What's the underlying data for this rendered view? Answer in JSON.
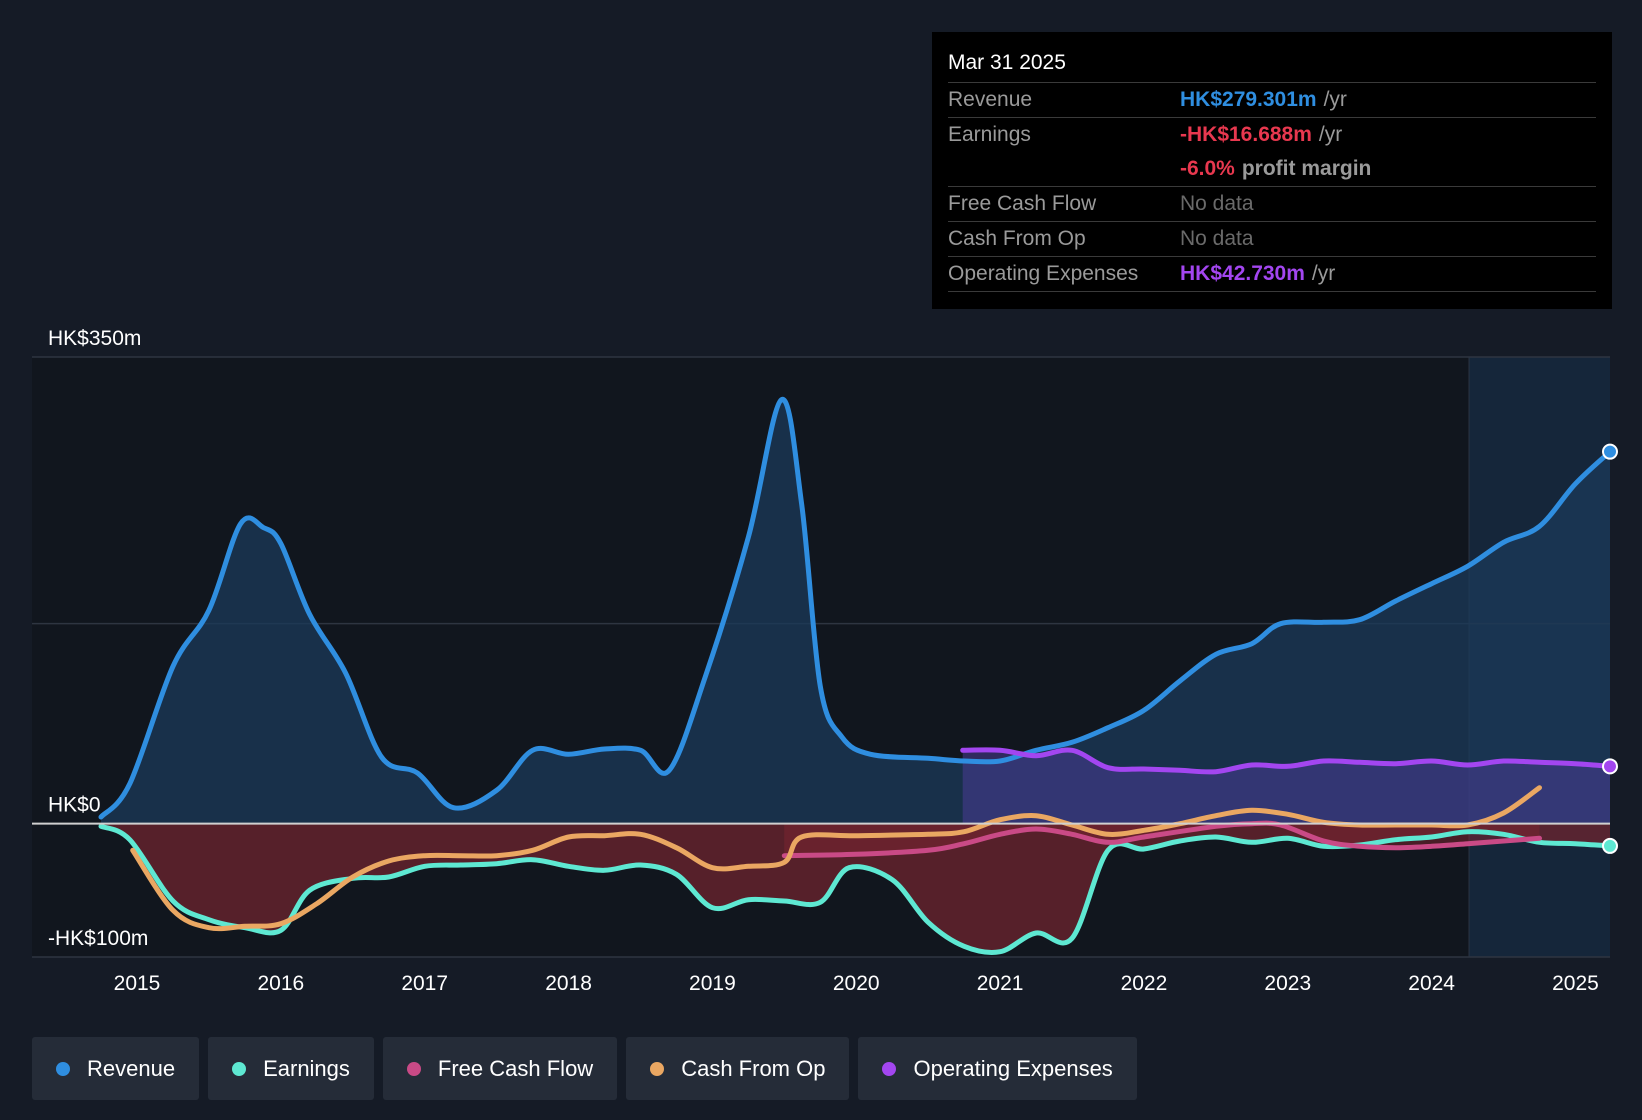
{
  "tooltip": {
    "date": "Mar 31 2025",
    "rows": [
      {
        "label": "Revenue",
        "value": "HK$279.301m",
        "unit": "/yr"
      },
      {
        "label": "Earnings",
        "value": "-HK$16.688m",
        "unit": "/yr"
      },
      {
        "label": "",
        "value": "-6.0%",
        "unit": "profit margin"
      },
      {
        "label": "Free Cash Flow",
        "value": "No data"
      },
      {
        "label": "Cash From Op",
        "value": "No data"
      },
      {
        "label": "Operating Expenses",
        "value": "HK$42.730m",
        "unit": "/yr"
      }
    ]
  },
  "legend": [
    {
      "label": "Revenue",
      "color": "#2f8ee0"
    },
    {
      "label": "Earnings",
      "color": "#5ee8d2"
    },
    {
      "label": "Free Cash Flow",
      "color": "#c94a86"
    },
    {
      "label": "Cash From Op",
      "color": "#eaa762"
    },
    {
      "label": "Operating Expenses",
      "color": "#a346f0"
    }
  ],
  "chart_data": {
    "type": "line",
    "ylim": [
      -100,
      350
    ],
    "y_tick_labels": [
      {
        "value": 350,
        "label": "HK$350m"
      },
      {
        "value": 0,
        "label": "HK$0"
      },
      {
        "value": -100,
        "label": "-HK$100m"
      }
    ],
    "x_ticks": [
      "2015",
      "2016",
      "2017",
      "2018",
      "2019",
      "2020",
      "2021",
      "2022",
      "2023",
      "2024",
      "2025"
    ],
    "xlim": [
      2014.27,
      2025.24
    ],
    "forecast_start": 2024.26,
    "series": [
      {
        "name": "Revenue",
        "color": "#2f8ee0",
        "area": true,
        "end_marker": true,
        "x": [
          2014.75,
          2014.95,
          2015.25,
          2015.5,
          2015.72,
          2015.88,
          2016.0,
          2016.2,
          2016.45,
          2016.7,
          2016.95,
          2017.2,
          2017.5,
          2017.75,
          2018.0,
          2018.25,
          2018.5,
          2018.7,
          2018.95,
          2019.25,
          2019.48,
          2019.62,
          2019.75,
          2019.9,
          2020.1,
          2020.5,
          2020.75,
          2021.0,
          2021.25,
          2021.5,
          2021.75,
          2022.0,
          2022.25,
          2022.5,
          2022.75,
          2022.95,
          2023.25,
          2023.5,
          2023.75,
          2024.0,
          2024.25,
          2024.5,
          2024.75,
          2025.0,
          2025.24
        ],
        "y": [
          5,
          30,
          118,
          160,
          225,
          222,
          210,
          157,
          113,
          50,
          38,
          12,
          25,
          55,
          52,
          56,
          55,
          40,
          110,
          215,
          318,
          240,
          103,
          65,
          52,
          49,
          47,
          47,
          55,
          61,
          72,
          85,
          107,
          127,
          135,
          150,
          151,
          153,
          167,
          180,
          193,
          211,
          223,
          255,
          279
        ]
      },
      {
        "name": "Operating Expenses",
        "color": "#a346f0",
        "area": true,
        "end_marker": true,
        "x": [
          2020.74,
          2021.0,
          2021.25,
          2021.5,
          2021.75,
          2022.0,
          2022.25,
          2022.5,
          2022.75,
          2023.0,
          2023.25,
          2023.5,
          2023.75,
          2024.0,
          2024.25,
          2024.5,
          2024.75,
          2025.0,
          2025.24
        ],
        "y": [
          55,
          55,
          51,
          55,
          42,
          41,
          40,
          39,
          44,
          43,
          47,
          46,
          45,
          47,
          44,
          47,
          46,
          45,
          43
        ]
      },
      {
        "name": "Earnings",
        "color": "#5ee8d2",
        "area": true,
        "end_marker": true,
        "x": [
          2014.75,
          2014.95,
          2015.25,
          2015.5,
          2015.75,
          2016.0,
          2016.2,
          2016.5,
          2016.75,
          2017.0,
          2017.25,
          2017.5,
          2017.75,
          2018.0,
          2018.25,
          2018.5,
          2018.75,
          2019.0,
          2019.25,
          2019.5,
          2019.75,
          2019.95,
          2020.25,
          2020.5,
          2020.75,
          2021.0,
          2021.25,
          2021.5,
          2021.75,
          2022.0,
          2022.25,
          2022.5,
          2022.75,
          2023.0,
          2023.25,
          2023.5,
          2023.75,
          2024.0,
          2024.25,
          2024.5,
          2024.75,
          2025.0,
          2025.24
        ],
        "y": [
          -2,
          -12,
          -58,
          -72,
          -78,
          -80,
          -50,
          -41,
          -40,
          -32,
          -31,
          -30,
          -27,
          -32,
          -35,
          -31,
          -38,
          -63,
          -57,
          -58,
          -59,
          -33,
          -42,
          -74,
          -92,
          -96,
          -82,
          -86,
          -20,
          -19,
          -13,
          -10,
          -14,
          -11,
          -17,
          -16,
          -12,
          -10,
          -6,
          -8,
          -14,
          -15,
          -16.7
        ]
      },
      {
        "name": "Free Cash Flow",
        "color": "#c94a86",
        "area": true,
        "end_marker": false,
        "x": [
          2019.5,
          2020.0,
          2020.5,
          2020.75,
          2021.0,
          2021.25,
          2021.5,
          2021.75,
          2022.0,
          2022.5,
          2022.75,
          2022.95,
          2023.25,
          2023.5,
          2023.75,
          2024.0,
          2024.25,
          2024.5,
          2024.75
        ],
        "y": [
          -24,
          -23,
          -20,
          -15,
          -8,
          -4,
          -8,
          -14,
          -10,
          -2,
          0,
          -1,
          -13,
          -17,
          -18,
          -17,
          -15,
          -13,
          -11
        ]
      },
      {
        "name": "Cash From Op",
        "color": "#eaa762",
        "area": false,
        "end_marker": false,
        "x": [
          2014.97,
          2015.25,
          2015.5,
          2015.75,
          2016.0,
          2016.25,
          2016.5,
          2016.75,
          2017.0,
          2017.25,
          2017.5,
          2017.75,
          2018.0,
          2018.25,
          2018.5,
          2018.75,
          2019.0,
          2019.25,
          2019.5,
          2019.62,
          2020.0,
          2020.5,
          2020.75,
          2021.0,
          2021.25,
          2021.5,
          2021.75,
          2022.0,
          2022.25,
          2022.5,
          2022.75,
          2023.0,
          2023.25,
          2023.5,
          2023.75,
          2024.0,
          2024.25,
          2024.5,
          2024.75
        ],
        "y": [
          -20,
          -65,
          -78,
          -77,
          -75,
          -60,
          -40,
          -28,
          -24,
          -24,
          -24,
          -20,
          -10,
          -9,
          -8,
          -18,
          -33,
          -32,
          -29,
          -10,
          -9,
          -8,
          -6,
          3,
          6,
          -1,
          -8,
          -5,
          0,
          6,
          10,
          7,
          1,
          -1,
          -1,
          -1,
          -1,
          8,
          27
        ]
      }
    ]
  }
}
